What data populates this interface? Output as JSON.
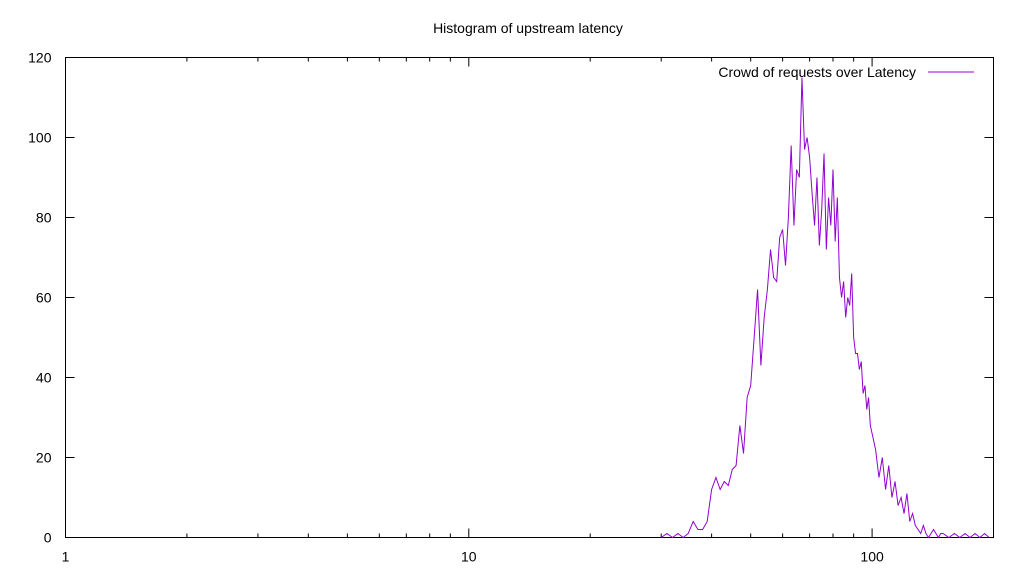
{
  "chart_data": {
    "type": "line",
    "title": "Histogram of upstream latency",
    "xlabel": "",
    "ylabel": "",
    "xscale": "log",
    "xlim": [
      1,
      200
    ],
    "ylim": [
      0,
      120
    ],
    "xticks": [
      1,
      10,
      100
    ],
    "yticks": [
      0,
      20,
      40,
      60,
      80,
      100,
      120
    ],
    "grid": false,
    "legend_position": "top-right",
    "series": [
      {
        "name": "Crowd of requests over Latency",
        "color": "#9400d3",
        "x": [
          30,
          31,
          32,
          33,
          34,
          35,
          36,
          37,
          38,
          39,
          40,
          41,
          42,
          43,
          44,
          45,
          46,
          47,
          48,
          49,
          50,
          51,
          52,
          53,
          54,
          55,
          56,
          57,
          58,
          59,
          60,
          61,
          62,
          63,
          64,
          65,
          66,
          67,
          68,
          69,
          70,
          71,
          72,
          73,
          74,
          75,
          76,
          77,
          78,
          79,
          80,
          81,
          82,
          83,
          84,
          85,
          86,
          87,
          88,
          89,
          90,
          91,
          92,
          93,
          94,
          95,
          96,
          97,
          98,
          99,
          100,
          102,
          104,
          106,
          108,
          110,
          112,
          114,
          116,
          118,
          120,
          122,
          124,
          126,
          128,
          130,
          132,
          134,
          136,
          138,
          140,
          142,
          144,
          146,
          148,
          150,
          155,
          160,
          165,
          170,
          175,
          180,
          185,
          190,
          195
        ],
        "values": [
          0,
          1,
          0,
          1,
          0,
          1,
          4,
          2,
          2,
          4,
          12,
          15,
          12,
          14,
          13,
          17,
          18,
          28,
          21,
          35,
          38,
          50,
          62,
          43,
          55,
          62,
          72,
          65,
          64,
          75,
          77,
          68,
          80,
          98,
          78,
          92,
          90,
          115,
          97,
          100,
          95,
          86,
          78,
          90,
          73,
          82,
          96,
          72,
          85,
          78,
          92,
          74,
          85,
          65,
          60,
          64,
          55,
          60,
          58,
          66,
          50,
          46,
          46,
          42,
          44,
          36,
          38,
          32,
          35,
          28,
          26,
          22,
          15,
          20,
          12,
          18,
          10,
          14,
          8,
          10,
          6,
          11,
          4,
          6,
          3,
          2,
          1,
          3,
          1,
          0,
          1,
          2,
          1,
          0,
          1,
          1,
          0,
          1,
          0,
          1,
          0,
          1,
          0,
          1,
          0
        ]
      }
    ]
  }
}
